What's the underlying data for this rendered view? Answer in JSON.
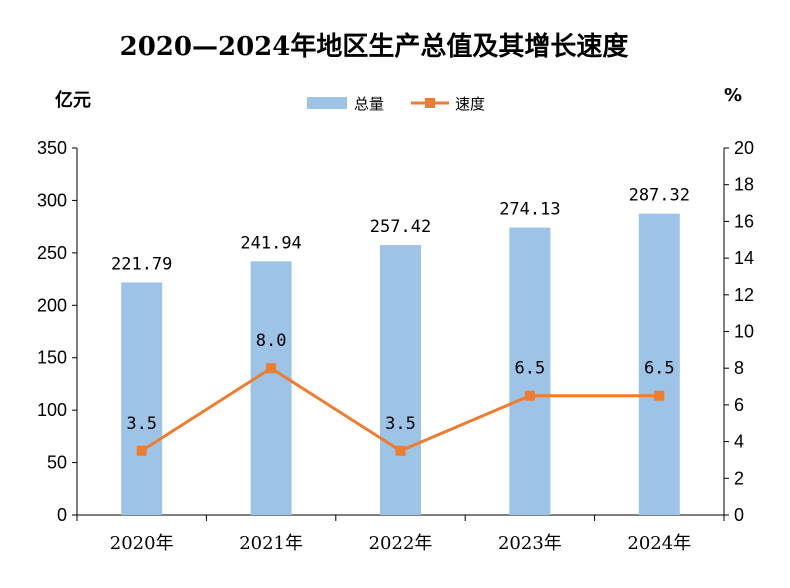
{
  "chart_data": {
    "type": "bar",
    "title": "2020—2024年地区生产总值及其增长速度",
    "categories": [
      "2020年",
      "2021年",
      "2022年",
      "2023年",
      "2024年"
    ],
    "series": [
      {
        "name": "总量",
        "type": "bar",
        "axis": "left",
        "values": [
          221.79,
          241.94,
          257.42,
          274.13,
          287.32
        ],
        "labels": [
          "221.79",
          "241.94",
          "257.42",
          "274.13",
          "287.32"
        ],
        "color": "#9DC3E6"
      },
      {
        "name": "速度",
        "type": "line",
        "axis": "right",
        "values": [
          3.5,
          8.0,
          3.5,
          6.5,
          6.5
        ],
        "labels": [
          "3.5",
          "8.0",
          "3.5",
          "6.5",
          "6.5"
        ],
        "color": "#ED7D31"
      }
    ],
    "ylabel_left": "亿元",
    "ylabel_right": "%",
    "ylim_left": [
      0,
      350
    ],
    "yticks_left": [
      "0",
      "50",
      "100",
      "150",
      "200",
      "250",
      "300",
      "350"
    ],
    "ylim_right": [
      0,
      20
    ],
    "yticks_right": [
      "0",
      "2",
      "4",
      "6",
      "8",
      "10",
      "12",
      "14",
      "16",
      "18",
      "20"
    ],
    "grid": false,
    "legend_position": "top-center"
  }
}
